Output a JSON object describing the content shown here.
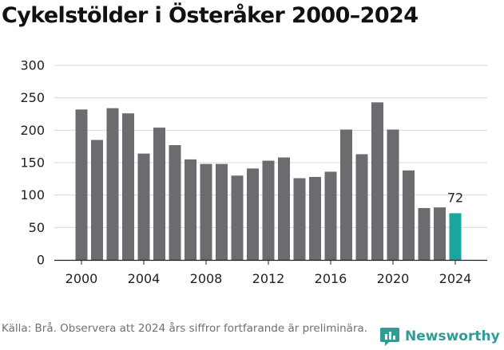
{
  "chart_data": {
    "type": "bar",
    "title": "Cykelstölder i Österåker 2000–2024",
    "xlabel": "",
    "ylabel": "",
    "categories": [
      "2000",
      "2001",
      "2002",
      "2003",
      "2004",
      "2005",
      "2006",
      "2007",
      "2008",
      "2009",
      "2010",
      "2011",
      "2012",
      "2013",
      "2014",
      "2015",
      "2016",
      "2017",
      "2018",
      "2019",
      "2020",
      "2021",
      "2022",
      "2023",
      "2024"
    ],
    "values": [
      232,
      185,
      234,
      226,
      164,
      204,
      177,
      155,
      148,
      148,
      130,
      141,
      153,
      158,
      126,
      128,
      136,
      201,
      163,
      243,
      201,
      138,
      80,
      81,
      72
    ],
    "ylim": [
      0,
      300
    ],
    "yticks": [
      0,
      50,
      100,
      150,
      200,
      250,
      300
    ],
    "xtick_labels": [
      "2000",
      "2004",
      "2008",
      "2012",
      "2016",
      "2020",
      "2024"
    ],
    "highlight_label": "72",
    "highlight_index": 24,
    "grid": true,
    "colors": {
      "bar": "#6c6c70",
      "highlight": "#1aa6a0",
      "grid": "#d9d9d9",
      "axis": "#222222"
    }
  },
  "source": "Källa: Brå. Observera att 2024 års siffror fortfarande är preliminära.",
  "logo": {
    "text": "Newsworthy",
    "icon": "newsworthy-bar-chart-icon",
    "color": "#2f9c96"
  }
}
